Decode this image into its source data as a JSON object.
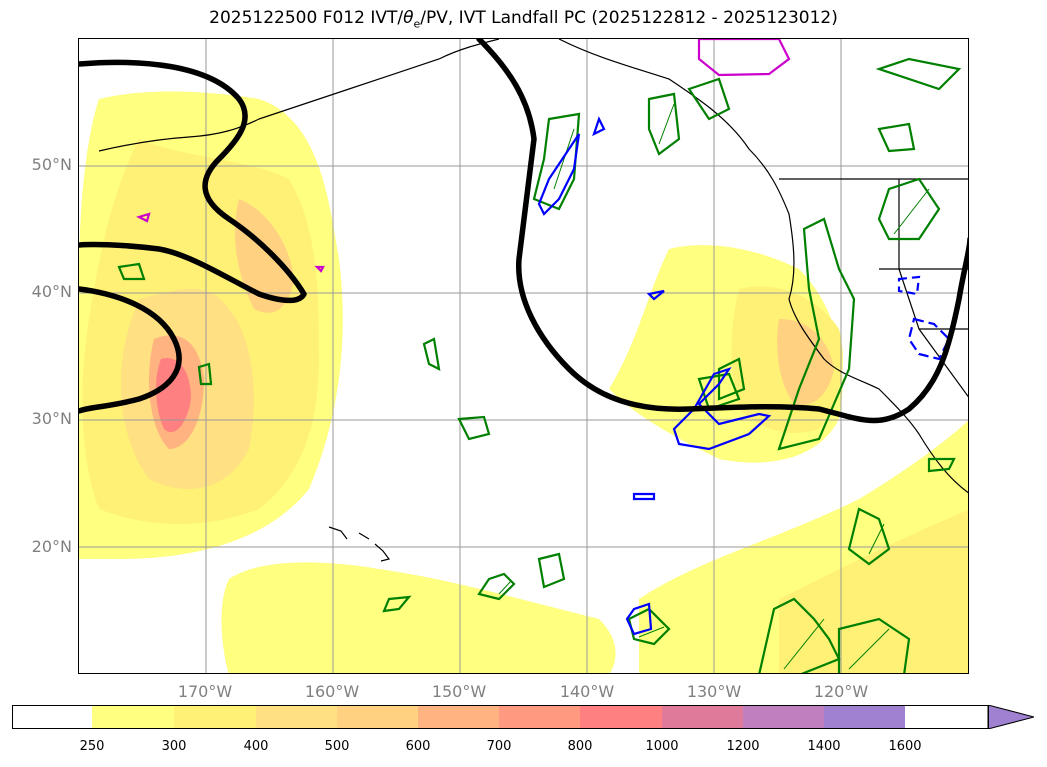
{
  "title": {
    "prefix": "2025122500 F012 IVT/",
    "theta": "θ",
    "theta_sub": "e",
    "suffix": "/PV, IVT Landfall PC (2025122812 - 2025123012)"
  },
  "lat_labels": [
    "50°N",
    "40°N",
    "30°N",
    "20°N"
  ],
  "lon_labels": [
    "170°W",
    "160°W",
    "150°W",
    "140°W",
    "130°W",
    "120°W"
  ],
  "colorbar": {
    "ticks": [
      "250",
      "300",
      "400",
      "500",
      "600",
      "700",
      "800",
      "1000",
      "1200",
      "1400",
      "1600"
    ],
    "colors": [
      "#ffffff",
      "#ffff80",
      "#fff176",
      "#ffe082",
      "#ffd180",
      "#ffb380",
      "#ff9980",
      "#ff8080",
      "#e07a9a",
      "#c080c0",
      "#a080d0"
    ]
  },
  "legend_colors": {
    "ivt_contour": "#000000",
    "theta_e": "#008000",
    "pv_positive": "#0000ff",
    "magenta": "#cc00cc"
  }
}
